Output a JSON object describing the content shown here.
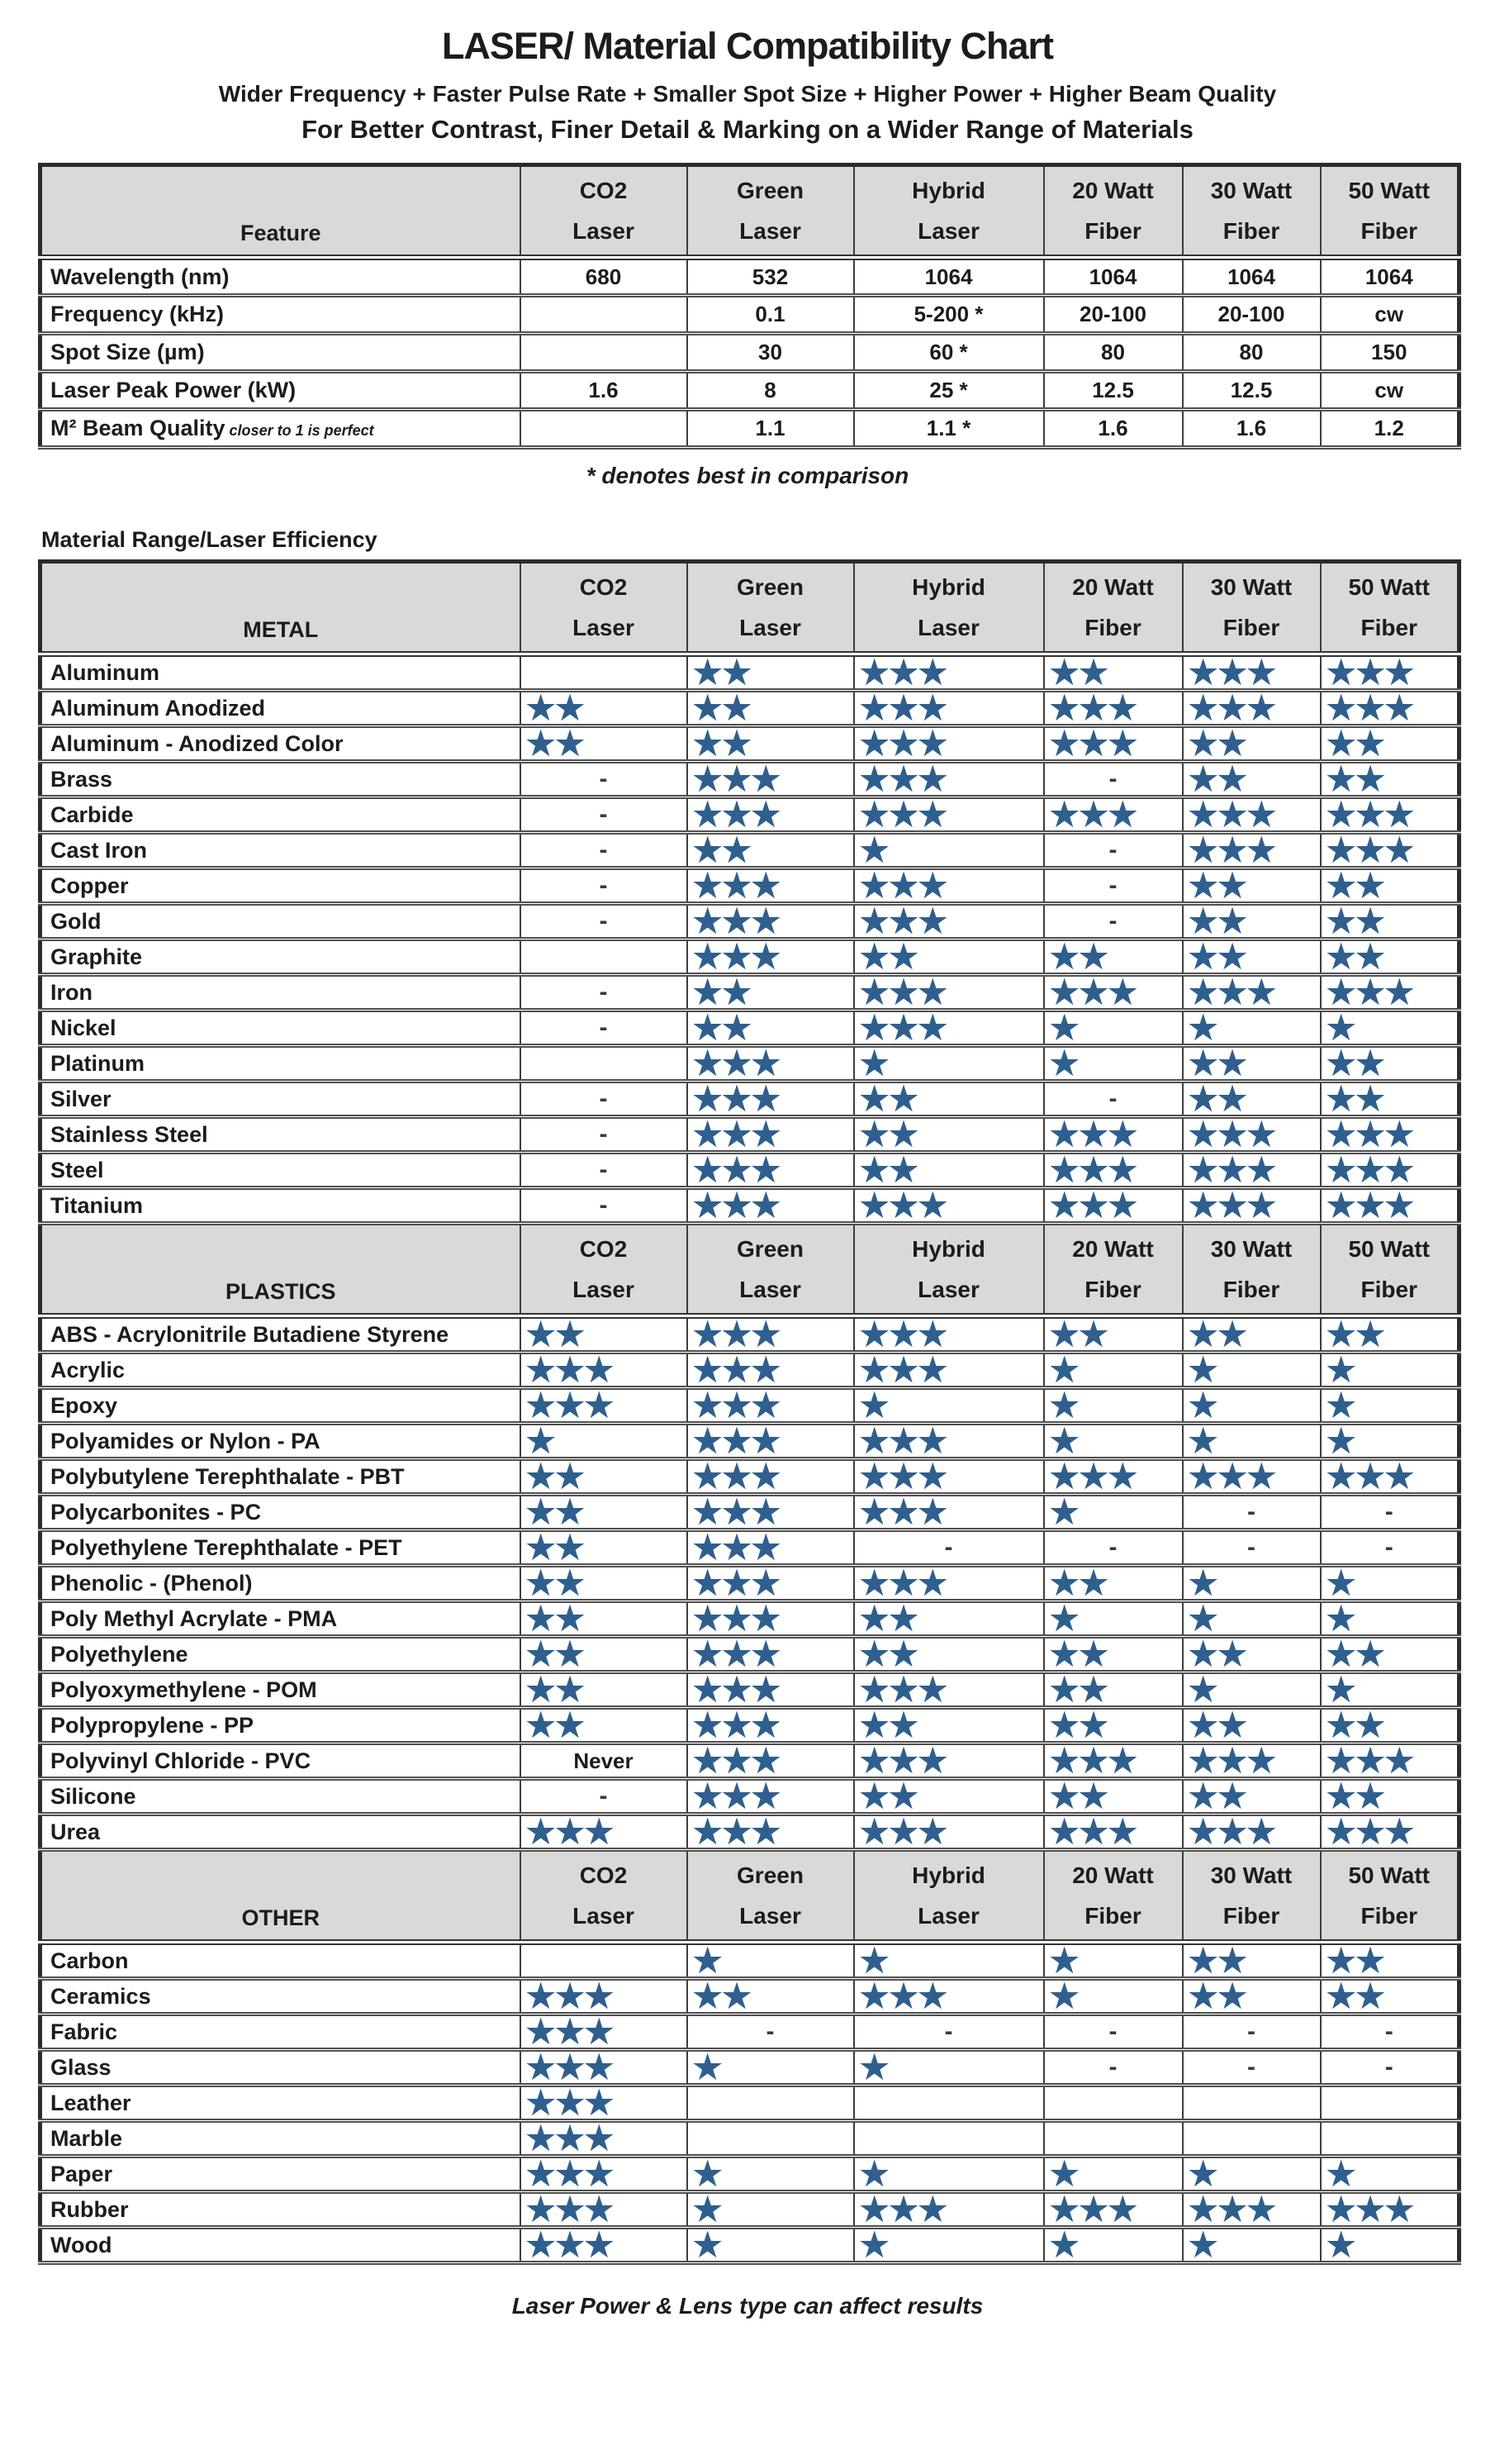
{
  "title": "LASER/ Material Compatibility Chart",
  "subtitle1": "Wider Frequency + Faster Pulse Rate + Smaller Spot Size + Higher Power + Higher Beam Quality",
  "subtitle2": "For Better Contrast, Finer Detail & Marking on a Wider Range of Materials",
  "star_char": "★",
  "star_color": "#2f5f8e",
  "header_fill": "#d9d9d9",
  "laser_columns": [
    "CO2\nLaser",
    "Green\nLaser",
    "Hybrid\nLaser",
    "20 Watt\nFiber",
    "30 Watt\nFiber",
    "50 Watt\nFiber"
  ],
  "feature_table": {
    "header": "Feature",
    "rows": [
      {
        "label": "Wavelength (nm)",
        "values": [
          "680",
          "532",
          "1064",
          "1064",
          "1064",
          "1064"
        ]
      },
      {
        "label": "Frequency (kHz)",
        "values": [
          "",
          "0.1",
          "5-200 *",
          "20-100",
          "20-100",
          "cw"
        ]
      },
      {
        "label": "Spot Size (µm)",
        "values": [
          "",
          "30",
          "60 *",
          "80",
          "80",
          "150"
        ]
      },
      {
        "label": "Laser Peak Power (kW)",
        "values": [
          "1.6",
          "8",
          "25 *",
          "12.5",
          "12.5",
          "cw"
        ]
      },
      {
        "label": "M² Beam Quality",
        "label_note": "closer to 1 is perfect",
        "values": [
          "",
          "1.1",
          "1.1 *",
          "1.6",
          "1.6",
          "1.2"
        ]
      }
    ],
    "footnote": "* denotes best in comparison"
  },
  "efficiency_label": "Material Range/Laser Efficiency",
  "sections": [
    {
      "name": "METAL",
      "compact": false,
      "rows": [
        {
          "label": "Aluminum",
          "ratings": [
            "",
            2,
            3,
            2,
            3,
            3
          ]
        },
        {
          "label": "Aluminum Anodized",
          "ratings": [
            2,
            2,
            3,
            3,
            3,
            3
          ]
        },
        {
          "label": "Aluminum - Anodized Color",
          "ratings": [
            2,
            2,
            3,
            3,
            2,
            2
          ]
        },
        {
          "label": "Brass",
          "ratings": [
            "-",
            3,
            3,
            "-",
            2,
            2
          ]
        },
        {
          "label": "Carbide",
          "ratings": [
            "-",
            3,
            3,
            3,
            3,
            3
          ]
        },
        {
          "label": "Cast Iron",
          "ratings": [
            "-",
            2,
            1,
            "-",
            3,
            3
          ]
        },
        {
          "label": "Copper",
          "ratings": [
            "-",
            3,
            3,
            "-",
            2,
            2
          ]
        },
        {
          "label": "Gold",
          "ratings": [
            "-",
            3,
            3,
            "-",
            2,
            2
          ]
        },
        {
          "label": "Graphite",
          "ratings": [
            "",
            3,
            2,
            2,
            2,
            2
          ]
        },
        {
          "label": "Iron",
          "ratings": [
            "-",
            2,
            3,
            3,
            3,
            3
          ]
        },
        {
          "label": "Nickel",
          "ratings": [
            "-",
            2,
            3,
            1,
            1,
            1
          ]
        },
        {
          "label": "Platinum",
          "ratings": [
            "",
            3,
            1,
            1,
            2,
            2
          ]
        },
        {
          "label": "Silver",
          "ratings": [
            "-",
            3,
            2,
            "-",
            2,
            2
          ]
        },
        {
          "label": "Stainless Steel",
          "ratings": [
            "-",
            3,
            2,
            3,
            3,
            3
          ]
        },
        {
          "label": "Steel",
          "ratings": [
            "-",
            3,
            2,
            3,
            3,
            3
          ]
        },
        {
          "label": "Titanium",
          "ratings": [
            "-",
            3,
            3,
            3,
            3,
            3
          ]
        }
      ]
    },
    {
      "name": "PLASTICS",
      "compact": false,
      "rows": [
        {
          "label": "ABS - Acrylonitrile Butadiene Styrene",
          "ratings": [
            2,
            3,
            3,
            2,
            2,
            2
          ]
        },
        {
          "label": "Acrylic",
          "ratings": [
            3,
            3,
            3,
            1,
            1,
            1
          ]
        },
        {
          "label": "Epoxy",
          "ratings": [
            3,
            3,
            1,
            1,
            1,
            1
          ]
        },
        {
          "label": "Polyamides or Nylon - PA",
          "ratings": [
            1,
            3,
            3,
            1,
            1,
            1
          ]
        },
        {
          "label": "Polybutylene Terephthalate - PBT",
          "ratings": [
            2,
            3,
            3,
            3,
            3,
            3
          ]
        },
        {
          "label": "Polycarbonites - PC",
          "ratings": [
            2,
            3,
            3,
            1,
            "-",
            "-"
          ]
        },
        {
          "label": "Polyethylene Terephthalate - PET",
          "ratings": [
            2,
            3,
            "-",
            "-",
            "-",
            "-"
          ]
        },
        {
          "label": "Phenolic - (Phenol)",
          "ratings": [
            2,
            3,
            3,
            2,
            1,
            1
          ]
        },
        {
          "label": "Poly Methyl Acrylate - PMA",
          "ratings": [
            2,
            3,
            2,
            1,
            1,
            1
          ]
        },
        {
          "label": "Polyethylene",
          "ratings": [
            2,
            3,
            2,
            2,
            2,
            2
          ]
        },
        {
          "label": "Polyoxymethylene - POM",
          "ratings": [
            2,
            3,
            3,
            2,
            1,
            1
          ]
        },
        {
          "label": "Polypropylene - PP",
          "ratings": [
            2,
            3,
            2,
            2,
            2,
            2
          ]
        },
        {
          "label": "Polyvinyl Chloride - PVC",
          "ratings": [
            "Never",
            3,
            3,
            3,
            3,
            3
          ]
        },
        {
          "label": "Silicone",
          "ratings": [
            "-",
            3,
            2,
            2,
            2,
            2
          ]
        },
        {
          "label": "Urea",
          "ratings": [
            3,
            3,
            3,
            3,
            3,
            3
          ]
        }
      ]
    },
    {
      "name": "OTHER",
      "compact": true,
      "rows": [
        {
          "label": "Carbon",
          "ratings": [
            "",
            1,
            1,
            1,
            2,
            2
          ]
        },
        {
          "label": "Ceramics",
          "ratings": [
            3,
            2,
            3,
            1,
            2,
            2
          ]
        },
        {
          "label": "Fabric",
          "ratings": [
            3,
            "-",
            "-",
            "-",
            "-",
            "-"
          ]
        },
        {
          "label": "Glass",
          "ratings": [
            3,
            1,
            1,
            "-",
            "-",
            "-"
          ]
        },
        {
          "label": "Leather",
          "ratings": [
            3,
            "",
            "",
            "",
            "",
            ""
          ]
        },
        {
          "label": "Marble",
          "ratings": [
            3,
            "",
            "",
            "",
            "",
            ""
          ]
        },
        {
          "label": "Paper",
          "ratings": [
            3,
            1,
            1,
            1,
            1,
            1
          ]
        },
        {
          "label": "Rubber",
          "ratings": [
            3,
            1,
            3,
            3,
            3,
            3
          ]
        },
        {
          "label": "Wood",
          "ratings": [
            3,
            1,
            1,
            1,
            1,
            1
          ]
        }
      ]
    }
  ],
  "footer": "Laser Power & Lens type can affect results"
}
